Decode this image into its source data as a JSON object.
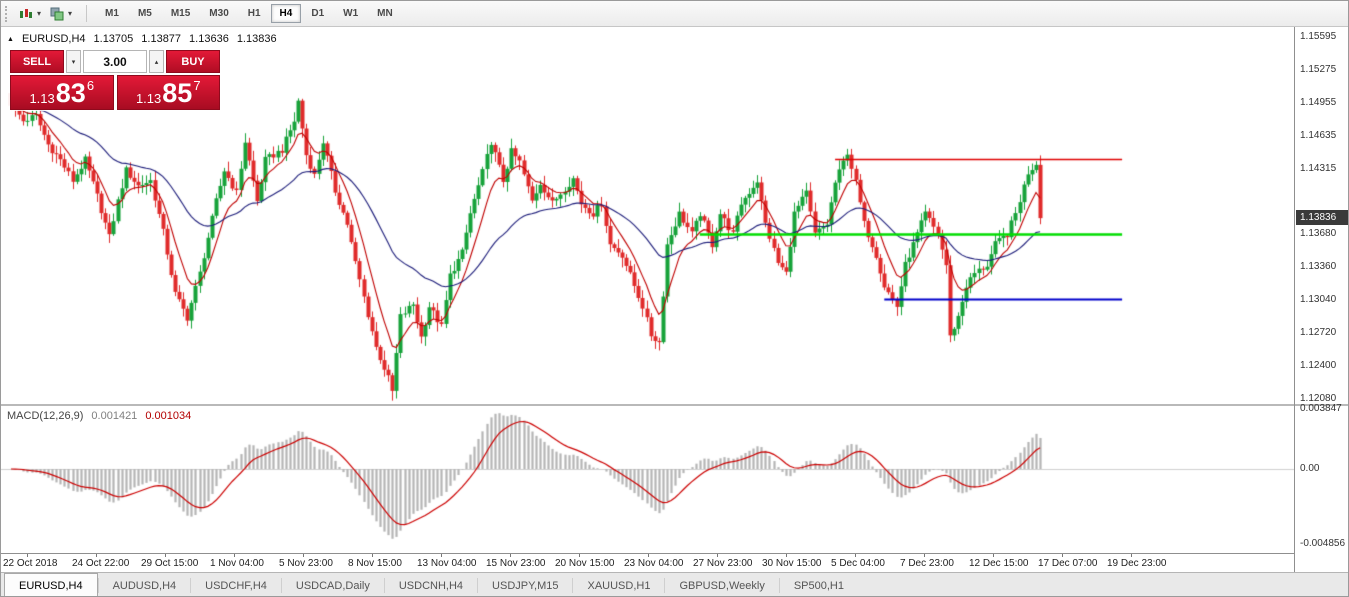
{
  "toolbar": {
    "timeframes": [
      "M1",
      "M5",
      "M15",
      "M30",
      "H1",
      "H4",
      "D1",
      "W1",
      "MN"
    ],
    "active_timeframe": "H4"
  },
  "glyphs": {
    "caret_down": "▾",
    "spin_down": "▾",
    "spin_up": "▴",
    "direction_up": "▲"
  },
  "chart_header": {
    "symbol": "EURUSD,H4",
    "open": "1.13705",
    "high": "1.13877",
    "low": "1.13636",
    "close": "1.13836"
  },
  "trade_panel": {
    "sell_label": "SELL",
    "buy_label": "BUY",
    "lot_value": "3.00",
    "sell_price": {
      "prefix": "1.13",
      "big": "83",
      "sup": "6"
    },
    "buy_price": {
      "prefix": "1.13",
      "big": "85",
      "sup": "7"
    },
    "accent_color": "#c8102e"
  },
  "price_axis": {
    "ticks": [
      "1.15595",
      "1.15275",
      "1.14955",
      "1.14635",
      "1.14315",
      "1.13680",
      "1.13360",
      "1.13040",
      "1.12720",
      "1.12400",
      "1.12080"
    ],
    "current_price": "1.13836",
    "badge_color": "#3a3a3a"
  },
  "macd_panel": {
    "label": "MACD(12,26,9)",
    "value_main": "0.001421",
    "value_signal": "0.001034",
    "axis": [
      "0.003847",
      "0.00",
      "-0.004856"
    ]
  },
  "time_axis": [
    "22 Oct 2018",
    "24 Oct 22:00",
    "29 Oct 15:00",
    "1 Nov 04:00",
    "5 Nov 23:00",
    "8 Nov 15:00",
    "13 Nov 04:00",
    "15 Nov 23:00",
    "20 Nov 15:00",
    "23 Nov 04:00",
    "27 Nov 23:00",
    "30 Nov 15:00",
    "5 Dec 04:00",
    "7 Dec 23:00",
    "12 Dec 15:00",
    "17 Dec 07:00",
    "19 Dec 23:00"
  ],
  "tabs": {
    "items": [
      "EURUSD,H4",
      "AUDUSD,H4",
      "USDCHF,H4",
      "USDCAD,Daily",
      "USDCNH,H4",
      "USDJPY,M15",
      "XAUUSD,H1",
      "GBPUSD,Weekly",
      "SP500,H1"
    ],
    "active": "EURUSD,H4"
  },
  "chart_data": {
    "type": "candlestick",
    "symbol": "EURUSD",
    "timeframe": "H4",
    "candle_count": 252,
    "last_close": 1.13836,
    "ylim": [
      1.12031,
      1.15692
    ],
    "colors": {
      "up": "#17a33a",
      "down": "#e02b2b",
      "ma_fast": "#c00000",
      "ma_slow": "#1c1c7a",
      "hist": "#b5b5b5",
      "signal": "#cc0000"
    },
    "ma_periods": {
      "fast": 8,
      "slow": 34
    },
    "levels": [
      {
        "name": "resistance-line",
        "price": 1.1441,
        "from_index": 201,
        "to_index": 271,
        "color": "#e00000",
        "width": 1.6
      },
      {
        "name": "pivot-line",
        "price": 1.1368,
        "from_index": 168,
        "to_index": 271,
        "color": "#00dd00",
        "width": 2.4
      },
      {
        "name": "support-line",
        "price": 1.1305,
        "from_index": 213,
        "to_index": 271,
        "color": "#0000cc",
        "width": 2
      }
    ],
    "macd": {
      "fast": 12,
      "slow": 26,
      "signal": 9,
      "axis_top": 0.003847,
      "axis_bottom": -0.004856
    },
    "price_path": [
      [
        0,
        1.1495
      ],
      [
        3,
        1.1478
      ],
      [
        6,
        1.1483
      ],
      [
        9,
        1.1455
      ],
      [
        12,
        1.144
      ],
      [
        15,
        1.142
      ],
      [
        18,
        1.144
      ],
      [
        21,
        1.1405
      ],
      [
        24,
        1.1365
      ],
      [
        26,
        1.14
      ],
      [
        28,
        1.143
      ],
      [
        31,
        1.1415
      ],
      [
        34,
        1.142
      ],
      [
        37,
        1.137
      ],
      [
        40,
        1.131
      ],
      [
        43,
        1.1287
      ],
      [
        46,
        1.133
      ],
      [
        50,
        1.14
      ],
      [
        52,
        1.143
      ],
      [
        55,
        1.1408
      ],
      [
        57,
        1.1458
      ],
      [
        60,
        1.14
      ],
      [
        62,
        1.144
      ],
      [
        66,
        1.145
      ],
      [
        69,
        1.1478
      ],
      [
        70,
        1.1497
      ],
      [
        72,
        1.1445
      ],
      [
        74,
        1.1425
      ],
      [
        76,
        1.1458
      ],
      [
        79,
        1.141
      ],
      [
        82,
        1.1378
      ],
      [
        84,
        1.134
      ],
      [
        87,
        1.129
      ],
      [
        89,
        1.1258
      ],
      [
        92,
        1.1228
      ],
      [
        93,
        1.1215
      ],
      [
        95,
        1.1288
      ],
      [
        98,
        1.13
      ],
      [
        100,
        1.1268
      ],
      [
        102,
        1.1298
      ],
      [
        105,
        1.1278
      ],
      [
        107,
        1.1328
      ],
      [
        110,
        1.135
      ],
      [
        112,
        1.1388
      ],
      [
        115,
        1.1428
      ],
      [
        117,
        1.1458
      ],
      [
        120,
        1.142
      ],
      [
        122,
        1.1448
      ],
      [
        124,
        1.1438
      ],
      [
        127,
        1.14
      ],
      [
        129,
        1.1418
      ],
      [
        132,
        1.1398
      ],
      [
        134,
        1.1408
      ],
      [
        137,
        1.1422
      ],
      [
        139,
        1.1398
      ],
      [
        142,
        1.1388
      ],
      [
        144,
        1.1398
      ],
      [
        146,
        1.1358
      ],
      [
        149,
        1.1348
      ],
      [
        151,
        1.1328
      ],
      [
        154,
        1.1298
      ],
      [
        156,
        1.127
      ],
      [
        158,
        1.1263
      ],
      [
        160,
        1.1358
      ],
      [
        163,
        1.1388
      ],
      [
        166,
        1.1368
      ],
      [
        168,
        1.1388
      ],
      [
        171,
        1.1358
      ],
      [
        173,
        1.1388
      ],
      [
        176,
        1.1368
      ],
      [
        178,
        1.1398
      ],
      [
        182,
        1.142
      ],
      [
        184,
        1.1378
      ],
      [
        187,
        1.134
      ],
      [
        189,
        1.133
      ],
      [
        191,
        1.1388
      ],
      [
        194,
        1.1408
      ],
      [
        196,
        1.1368
      ],
      [
        199,
        1.1378
      ],
      [
        201,
        1.1418
      ],
      [
        204,
        1.1448
      ],
      [
        206,
        1.1418
      ],
      [
        208,
        1.1378
      ],
      [
        211,
        1.1348
      ],
      [
        213,
        1.1318
      ],
      [
        216,
        1.1298
      ],
      [
        218,
        1.1338
      ],
      [
        221,
        1.1368
      ],
      [
        223,
        1.1388
      ],
      [
        226,
        1.1368
      ],
      [
        228,
        1.1338
      ],
      [
        229,
        1.1268
      ],
      [
        231,
        1.1288
      ],
      [
        233,
        1.1318
      ],
      [
        235,
        1.133
      ],
      [
        238,
        1.1338
      ],
      [
        240,
        1.1358
      ],
      [
        243,
        1.1368
      ],
      [
        245,
        1.1388
      ],
      [
        248,
        1.1428
      ],
      [
        250,
        1.1437
      ],
      [
        251,
        1.13836
      ]
    ]
  }
}
